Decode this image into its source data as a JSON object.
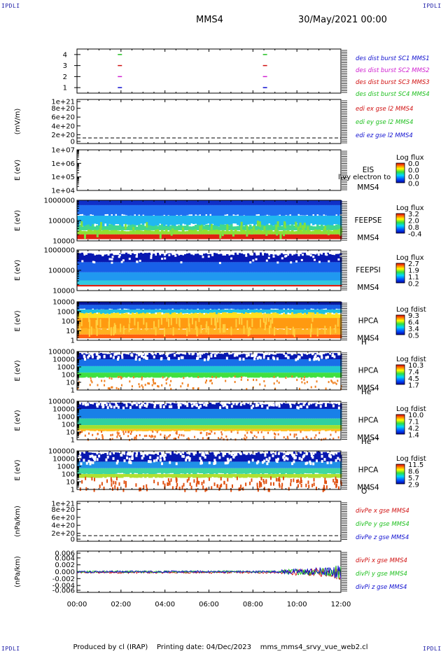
{
  "header": {
    "corner_label": "IPDLI",
    "mission": "MMS4",
    "datetime": "30/May/2021 00:00"
  },
  "footer": {
    "produced": "Produced by cl (IRAP)",
    "printing": "Printing date: 04/Dec/2023",
    "file": "mms_mms4_srvy_vue_web2.cl"
  },
  "colors": {
    "blue": "#1010d0",
    "green": "#20c020",
    "red": "#d01010",
    "magenta": "#d020d0"
  },
  "time_axis": {
    "range_hours": [
      0,
      12
    ],
    "ticks": [
      "00:00",
      "02:00",
      "04:00",
      "06:00",
      "08:00",
      "10:00",
      "12:00"
    ]
  },
  "chart_data": [
    {
      "type": "scatter",
      "panel": "burst",
      "ylim": [
        0.5,
        4.5
      ],
      "yticks": [
        "1",
        "2",
        "3",
        "4"
      ],
      "series": [
        {
          "name": "des dist burst SC1 MMS1",
          "color_key": "blue",
          "y": 1,
          "x_hours": [
            1.95,
            8.55
          ]
        },
        {
          "name": "des dist burst SC2 MMS2",
          "color_key": "magenta",
          "y": 2,
          "x_hours": [
            1.95,
            8.55
          ]
        },
        {
          "name": "des dist burst SC3 MMS3",
          "color_key": "red",
          "y": 3,
          "x_hours": [
            1.95,
            8.55
          ]
        },
        {
          "name": "des dist burst SC4 MMS4",
          "color_key": "green",
          "y": 4,
          "x_hours": [
            1.95,
            8.55
          ]
        }
      ]
    },
    {
      "type": "line",
      "panel": "edi",
      "ylabel": "(mV/m)",
      "ylim": [
        0,
        1e+21
      ],
      "yticks": [
        "0",
        "2e+20",
        "4e+20",
        "6e+20",
        "8e+20",
        "1e+21"
      ],
      "zero_line": true,
      "series": [
        {
          "name": "edi ex gse l2 MMS4",
          "color_key": "red"
        },
        {
          "name": "edi ey gse l2 MMS4",
          "color_key": "green"
        },
        {
          "name": "edi ez gse l2 MMS4",
          "color_key": "blue"
        }
      ]
    },
    {
      "type": "heatmap",
      "panel": "eis",
      "ylabel": "E (eV)",
      "yscale": "log",
      "yticks": [
        "1e+04",
        "1e+05",
        "1e+06",
        "1e+07"
      ],
      "instrument": [
        "EIS",
        "MMS4"
      ],
      "overlay_text": "l\\vy electron to",
      "colorbar": {
        "title": "Log flux",
        "values": [
          "0.0",
          "0.0",
          "0.0",
          "0.0"
        ]
      },
      "filled": false
    },
    {
      "type": "heatmap",
      "panel": "feepse",
      "ylabel": "E (eV)",
      "yscale": "log",
      "yticks": [
        "10000",
        "100000",
        "1000000"
      ],
      "instrument": [
        "FEEPSE",
        "MMS4"
      ],
      "colorbar": {
        "title": "Log flux",
        "values": [
          "3.2",
          "2.0",
          "0.8",
          "-0.4"
        ]
      },
      "filled": true
    },
    {
      "type": "heatmap",
      "panel": "feepsi",
      "ylabel": "E (eV)",
      "yscale": "log",
      "yticks": [
        "10000",
        "100000",
        "1000000"
      ],
      "instrument": [
        "FEEPSI",
        "MMS4"
      ],
      "colorbar": {
        "title": "Log flux",
        "values": [
          "2.7",
          "1.9",
          "1.1",
          "0.2"
        ]
      },
      "filled": true
    },
    {
      "type": "heatmap",
      "panel": "hpca_h",
      "ylabel": "E (eV)",
      "yscale": "log",
      "yticks": [
        "1",
        "10",
        "100",
        "1000",
        "10000"
      ],
      "instrument": [
        "HPCA",
        "MMS4"
      ],
      "species": "H",
      "species_charge": "+",
      "colorbar": {
        "title": "Log fdist",
        "values": [
          "9.3",
          "6.4",
          "3.4",
          "0.5"
        ]
      },
      "filled": true
    },
    {
      "type": "heatmap",
      "panel": "hpca_he",
      "ylabel": "E (eV)",
      "yscale": "log",
      "yticks": [
        "1",
        "10",
        "100",
        "1000",
        "10000",
        "100000"
      ],
      "instrument": [
        "HPCA",
        "MMS4"
      ],
      "species": "He",
      "species_charge": "+",
      "colorbar": {
        "title": "Log fdist",
        "values": [
          "10.3",
          "7.4",
          "4.5",
          "1.7"
        ]
      },
      "filled": true
    },
    {
      "type": "heatmap",
      "panel": "hpca_he2",
      "ylabel": "E (eV)",
      "yscale": "log",
      "yticks": [
        "1",
        "10",
        "100",
        "1000",
        "10000",
        "100000"
      ],
      "instrument": [
        "HPCA",
        "MMS4"
      ],
      "species": "He",
      "species_charge": "++",
      "colorbar": {
        "title": "Log fdist",
        "values": [
          "10.0",
          "7.1",
          "4.2",
          "1.4"
        ]
      },
      "filled": true
    },
    {
      "type": "heatmap",
      "panel": "hpca_o",
      "ylabel": "E (eV)",
      "yscale": "log",
      "yticks": [
        "1",
        "10",
        "100",
        "1000",
        "10000",
        "100000"
      ],
      "instrument": [
        "HPCA",
        "MMS4"
      ],
      "species": "O",
      "species_charge": "+",
      "colorbar": {
        "title": "Log fdist",
        "values": [
          "11.5",
          "8.6",
          "5.7",
          "2.9"
        ]
      },
      "filled": true
    },
    {
      "type": "line",
      "panel": "divpe",
      "ylabel": "(nPa/km)",
      "ylim": [
        0,
        1e+21
      ],
      "yticks": [
        "0",
        "2e+20",
        "4e+20",
        "6e+20",
        "8e+20",
        "1e+21"
      ],
      "zero_line": true,
      "series": [
        {
          "name": "divPe x gse MMS4",
          "color_key": "red"
        },
        {
          "name": "divPe y gse MMS4",
          "color_key": "green"
        },
        {
          "name": "divPe z gse MMS4",
          "color_key": "blue"
        }
      ]
    },
    {
      "type": "line",
      "panel": "divpi",
      "ylabel": "(nPa/km)",
      "ylim": [
        -0.006,
        0.006
      ],
      "yticks": [
        "-0.006",
        "-0.004",
        "-0.002",
        "0.000",
        "0.002",
        "0.004",
        "0.006"
      ],
      "series": [
        {
          "name": "divPi x gse MMS4",
          "color_key": "red"
        },
        {
          "name": "divPi y gse MMS4",
          "color_key": "green"
        },
        {
          "name": "divPi z gse MMS4",
          "color_key": "blue"
        }
      ]
    }
  ]
}
